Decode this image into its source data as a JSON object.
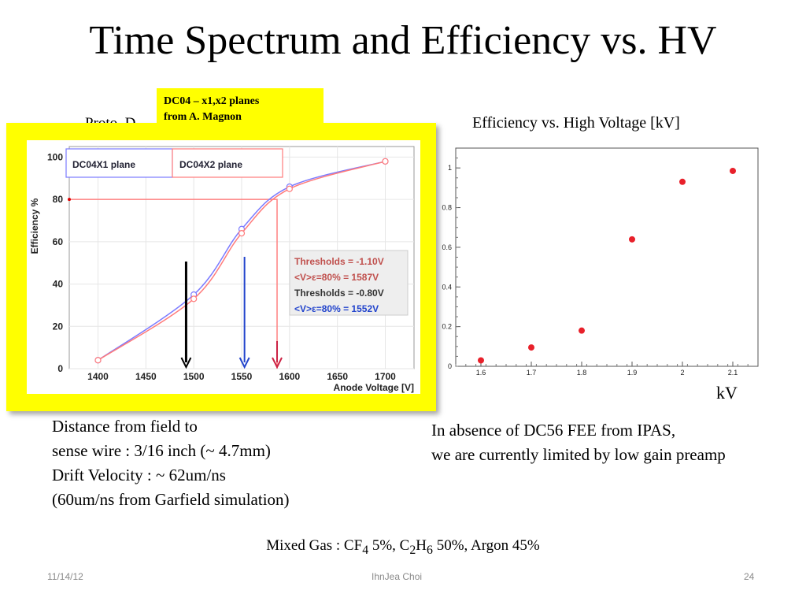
{
  "slide": {
    "title": "Time Spectrum and Efficiency vs. HV",
    "obscured_caption": "Proto  D                                     ation",
    "note_line1": "DC04 – x1,x2 planes",
    "note_line2": "from  A. Magnon",
    "right_title": "Efficiency vs. High Voltage [kV]",
    "kv_label": "kV",
    "left_text": [
      "Distance from field to",
      "sense wire : 3/16 inch (~ 4.7mm)",
      "Drift Velocity :  ~ 62um/ns",
      "(60um/ns from Garfield simulation)"
    ],
    "right_text": [
      "In absence of DC56 FEE from IPAS,",
      "we are currently limited by low gain preamp"
    ],
    "gas_prefix": "Mixed Gas : CF",
    "gas_sub1": "4",
    "gas_mid1": " 5%, C",
    "gas_sub2": "2",
    "gas_mid2": "H",
    "gas_sub3": "6",
    "gas_suffix": " 50%, Argon 45%"
  },
  "footer": {
    "date": "11/14/12",
    "author": "IhnJea Choi",
    "page": "24"
  },
  "chart_data": [
    {
      "type": "line",
      "ylabel": "Efficiency %",
      "xlabel": "Anode Voltage [V]",
      "xlim": [
        1370,
        1730
      ],
      "ylim": [
        0,
        105
      ],
      "x_ticks": [
        1400,
        1450,
        1500,
        1550,
        1600,
        1650,
        1700
      ],
      "y_ticks": [
        0,
        20,
        40,
        60,
        80,
        100
      ],
      "legend": [
        "DC04X1 plane",
        "DC04X2 plane"
      ],
      "series": [
        {
          "name": "DC04X1 plane",
          "color": "#7b7bff",
          "x": [
            1400,
            1500,
            1550,
            1600,
            1700
          ],
          "y": [
            4,
            35,
            66,
            86,
            98
          ]
        },
        {
          "name": "DC04X2 plane",
          "color": "#ff7b7b",
          "x": [
            1400,
            1500,
            1550,
            1600,
            1700
          ],
          "y": [
            4,
            33,
            64,
            85,
            98
          ]
        }
      ],
      "reference_line": {
        "y": 80,
        "x": 1587,
        "color": "#ff8080"
      },
      "arrows": [
        {
          "x": 1492,
          "color": "#000000"
        },
        {
          "x": 1553,
          "color": "#2244cc"
        },
        {
          "x": 1587,
          "color": "#cc2244"
        }
      ],
      "annotation_lines": [
        "Thresholds = -1.10V",
        "<V>ε=80% = 1587V",
        "Thresholds = -0.80V",
        "<V>ε=80% = 1552V"
      ],
      "annotation_colors": [
        "#c0504d",
        "#c0504d",
        "#333333",
        "#2244cc"
      ]
    },
    {
      "type": "scatter",
      "title": "Efficiency vs. High Voltage [kV]",
      "xlabel": "kV",
      "xlim": [
        1.55,
        2.15
      ],
      "ylim": [
        0,
        1.1
      ],
      "x_ticks": [
        1.6,
        1.7,
        1.8,
        1.9,
        2,
        2.1
      ],
      "x_tick_labels": [
        "1.6",
        "1.7",
        "1.8",
        "1.9",
        "2",
        "2.1"
      ],
      "y_ticks": [
        0,
        0.2,
        0.4,
        0.6,
        0.8,
        1
      ],
      "y_tick_labels": [
        "0",
        "0.2",
        "0.4",
        "0.6",
        "0.8",
        "1"
      ],
      "series": [
        {
          "color": "#e8202a",
          "x": [
            1.6,
            1.7,
            1.8,
            1.9,
            2.0,
            2.1
          ],
          "y": [
            0.03,
            0.095,
            0.18,
            0.64,
            0.93,
            0.985
          ]
        }
      ]
    }
  ]
}
